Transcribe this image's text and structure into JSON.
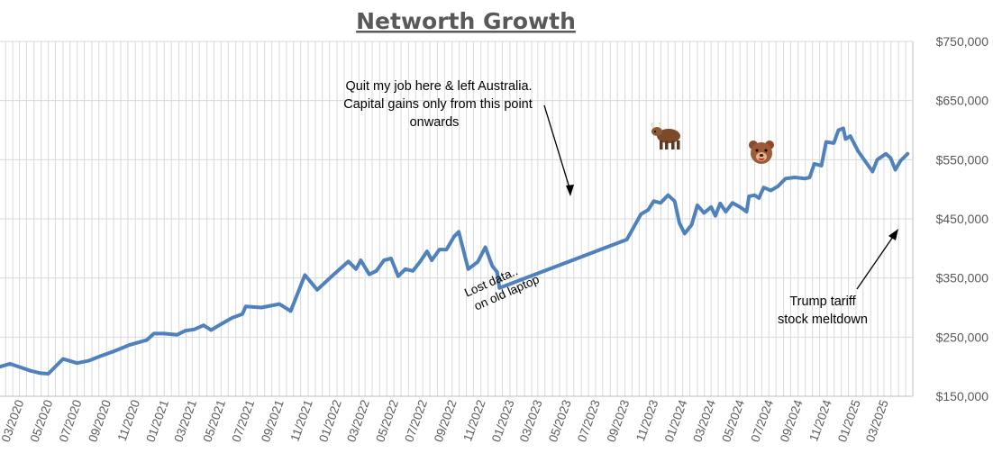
{
  "chart_data": {
    "type": "line",
    "title": "Networth Growth",
    "xlabel": "",
    "ylabel": "",
    "y_axis_position": "right",
    "ylim": [
      150000,
      750000
    ],
    "y_ticks": [
      "$150,000",
      "$250,000",
      "$350,000",
      "$450,000",
      "$550,000",
      "$650,000",
      "$750,000"
    ],
    "y_tick_values": [
      150000,
      250000,
      350000,
      450000,
      550000,
      650000,
      750000
    ],
    "x_range": [
      "2020-01-20",
      "2025-05-01"
    ],
    "x_ticks": [
      "03/2020",
      "05/2020",
      "07/2020",
      "09/2020",
      "11/2020",
      "01/2021",
      "03/2021",
      "05/2021",
      "07/2021",
      "09/2021",
      "11/2021",
      "01/2022",
      "03/2022",
      "05/2022",
      "07/2022",
      "09/2022",
      "11/2022",
      "01/2023",
      "03/2023",
      "05/2023",
      "07/2023",
      "09/2023",
      "11/2023",
      "01/2024",
      "03/2024",
      "05/2024",
      "07/2024",
      "09/2024",
      "11/2024",
      "01/2025",
      "03/2025"
    ],
    "grid": true,
    "legend": "none",
    "series": [
      {
        "color": "#4f81bd",
        "points": [
          [
            "2020-01-20",
            200000
          ],
          [
            "2020-02-10",
            205000
          ],
          [
            "2020-03-25",
            193000
          ],
          [
            "2020-04-15",
            189000
          ],
          [
            "2020-05-01",
            188000
          ],
          [
            "2020-06-01",
            213000
          ],
          [
            "2020-07-01",
            206000
          ],
          [
            "2020-07-25",
            210000
          ],
          [
            "2020-08-20",
            218000
          ],
          [
            "2020-09-20",
            227000
          ],
          [
            "2020-10-20",
            237000
          ],
          [
            "2020-11-25",
            245000
          ],
          [
            "2020-12-10",
            256000
          ],
          [
            "2021-01-01",
            256000
          ],
          [
            "2021-01-28",
            254000
          ],
          [
            "2021-02-15",
            261000
          ],
          [
            "2021-03-05",
            263000
          ],
          [
            "2021-03-25",
            270000
          ],
          [
            "2021-04-10",
            262000
          ],
          [
            "2021-05-01",
            272000
          ],
          [
            "2021-05-25",
            283000
          ],
          [
            "2021-06-15",
            289000
          ],
          [
            "2021-06-22",
            302000
          ],
          [
            "2021-07-25",
            300000
          ],
          [
            "2021-09-01",
            306000
          ],
          [
            "2021-09-25",
            294000
          ],
          [
            "2021-10-25",
            355000
          ],
          [
            "2021-11-20",
            330000
          ],
          [
            "2021-12-25",
            356000
          ],
          [
            "2022-01-25",
            378000
          ],
          [
            "2022-02-10",
            365000
          ],
          [
            "2022-02-20",
            380000
          ],
          [
            "2022-03-10",
            356000
          ],
          [
            "2022-03-25",
            362000
          ],
          [
            "2022-04-10",
            380000
          ],
          [
            "2022-04-25",
            383000
          ],
          [
            "2022-05-10",
            353000
          ],
          [
            "2022-05-25",
            365000
          ],
          [
            "2022-06-10",
            362000
          ],
          [
            "2022-06-25",
            377000
          ],
          [
            "2022-07-10",
            395000
          ],
          [
            "2022-07-20",
            380000
          ],
          [
            "2022-08-05",
            398000
          ],
          [
            "2022-08-20",
            398000
          ],
          [
            "2022-09-05",
            420000
          ],
          [
            "2022-09-15",
            428000
          ],
          [
            "2022-10-05",
            365000
          ],
          [
            "2022-10-25",
            377000
          ],
          [
            "2022-11-10",
            402000
          ],
          [
            "2022-11-25",
            370000
          ],
          [
            "2022-12-05",
            360000
          ],
          [
            "2022-12-10",
            333000
          ],
          [
            "2023-09-05",
            415000
          ],
          [
            "2023-10-05",
            458000
          ],
          [
            "2023-10-20",
            465000
          ],
          [
            "2023-11-01",
            480000
          ],
          [
            "2023-11-15",
            477000
          ],
          [
            "2023-12-01",
            490000
          ],
          [
            "2023-12-15",
            480000
          ],
          [
            "2023-12-25",
            443000
          ],
          [
            "2024-01-05",
            425000
          ],
          [
            "2024-01-20",
            440000
          ],
          [
            "2024-02-01",
            473000
          ],
          [
            "2024-02-15",
            460000
          ],
          [
            "2024-03-01",
            470000
          ],
          [
            "2024-03-10",
            455000
          ],
          [
            "2024-03-20",
            476000
          ],
          [
            "2024-04-01",
            462000
          ],
          [
            "2024-04-15",
            477000
          ],
          [
            "2024-05-01",
            470000
          ],
          [
            "2024-05-15",
            462000
          ],
          [
            "2024-05-20",
            488000
          ],
          [
            "2024-06-01",
            490000
          ],
          [
            "2024-06-10",
            485000
          ],
          [
            "2024-06-20",
            503000
          ],
          [
            "2024-07-05",
            498000
          ],
          [
            "2024-07-20",
            505000
          ],
          [
            "2024-08-05",
            518000
          ],
          [
            "2024-08-25",
            520000
          ],
          [
            "2024-09-15",
            518000
          ],
          [
            "2024-09-25",
            520000
          ],
          [
            "2024-10-05",
            543000
          ],
          [
            "2024-10-20",
            540000
          ],
          [
            "2024-10-30",
            580000
          ],
          [
            "2024-11-15",
            578000
          ],
          [
            "2024-11-25",
            600000
          ],
          [
            "2024-12-05",
            603000
          ],
          [
            "2024-12-10",
            585000
          ],
          [
            "2024-12-20",
            590000
          ],
          [
            "2025-01-05",
            565000
          ],
          [
            "2025-01-20",
            548000
          ],
          [
            "2025-02-05",
            530000
          ],
          [
            "2025-02-15",
            550000
          ],
          [
            "2025-03-05",
            560000
          ],
          [
            "2025-03-15",
            553000
          ],
          [
            "2025-03-25",
            533000
          ],
          [
            "2025-04-05",
            548000
          ],
          [
            "2025-04-20",
            560000
          ]
        ]
      }
    ],
    "annotations": [
      "Quit my job here & left Australia.",
      "Capital gains only from this point",
      "onwards",
      "Lost data..",
      "on old laptop",
      "Trump tariff",
      "stock meltdown"
    ],
    "icons": [
      "bull-icon",
      "bear-icon"
    ]
  }
}
